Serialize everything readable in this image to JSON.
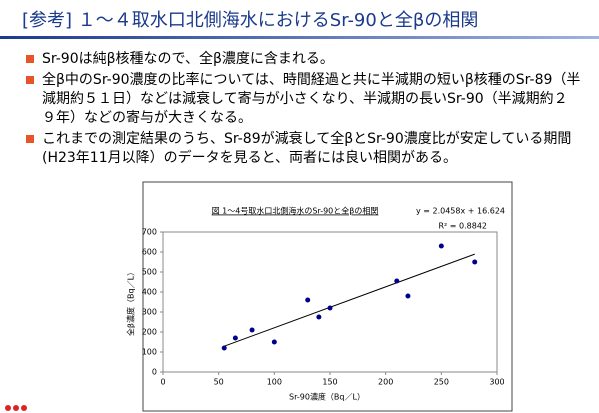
{
  "header": {
    "title": "[参考] １～４取水口北側海水におけるSr-90と全βの相関"
  },
  "bullets": [
    "Sr-90は純β核種なので、全β濃度に含まれる。",
    "全β中のSr-90濃度の比率については、時間経過と共に半減期の短いβ核種のSr-89（半減期約５１日）などは減衰して寄与が小さくなり、半減期の長いSr-90（半減期約２９年）などの寄与が大きくなる。",
    "これまでの測定結果のうち、Sr-89が減衰して全βとSr-90濃度比が安定している期間(H23年11月以降）のデータを見ると、両者には良い相関がある。"
  ],
  "chart_data": {
    "type": "scatter",
    "title": "図 1～4号取水口北側海水のSr-90と全βの相関",
    "x_label": "Sr-90濃度（Bq／L）",
    "y_label": "全β濃度（Bq／L）",
    "x": [
      55,
      65,
      80,
      100,
      130,
      140,
      150,
      210,
      220,
      250,
      280
    ],
    "values": [
      120,
      170,
      210,
      150,
      360,
      275,
      320,
      455,
      380,
      630,
      550
    ],
    "color": "#00008b",
    "xlim": [
      0,
      300
    ],
    "xticks": [
      0,
      50,
      100,
      150,
      200,
      250,
      300
    ],
    "ylim": [
      0,
      700
    ],
    "yticks": [
      0,
      100,
      200,
      300,
      400,
      500,
      600,
      700
    ],
    "grid": false,
    "trendline": {
      "label": "y = 2.0458x + 16.624",
      "slope": 2.0458,
      "intercept": 16.624,
      "r2_label": "R² = 0.8842"
    }
  }
}
